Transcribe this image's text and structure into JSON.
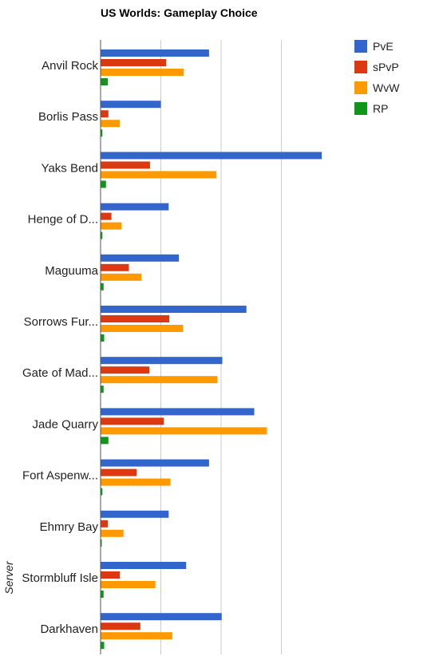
{
  "chart_data": {
    "type": "bar",
    "orientation": "horizontal",
    "title": "US Worlds: Gameplay Choice",
    "ylabel": "Server",
    "xlabel": "",
    "xlim": [
      0,
      35
    ],
    "grid": true,
    "legend_position": "top-right",
    "categories": [
      "Anvil Rock",
      "Borlis Pass",
      "Yaks Bend",
      "Henge of D...",
      "Maguuma",
      "Sorrows Fur...",
      "Gate of Mad...",
      "Jade Quarry",
      "Fort Aspenw...",
      "Ehmry Bay",
      "Stormbluff Isle",
      "Darkhaven"
    ],
    "series": [
      {
        "name": "PvE",
        "color": "#3366cc",
        "values": [
          18,
          10,
          36.7,
          11.3,
          13,
          24.2,
          20.2,
          25.5,
          18,
          11.3,
          14.2,
          20.1
        ]
      },
      {
        "name": "sPvP",
        "color": "#dc3912",
        "values": [
          10.9,
          1.3,
          8.2,
          1.8,
          4.7,
          11.4,
          8.1,
          10.5,
          6,
          1.2,
          3.2,
          6.6
        ]
      },
      {
        "name": "WvW",
        "color": "#ff9900",
        "values": [
          13.8,
          3.2,
          19.2,
          3.5,
          6.8,
          13.7,
          19.4,
          27.6,
          11.6,
          3.8,
          9.1,
          11.9
        ]
      },
      {
        "name": "RP",
        "color": "#109618",
        "values": [
          1.2,
          0.3,
          0.9,
          0.3,
          0.5,
          0.6,
          0.5,
          1.3,
          0.3,
          0.2,
          0.5,
          0.6
        ]
      }
    ]
  }
}
